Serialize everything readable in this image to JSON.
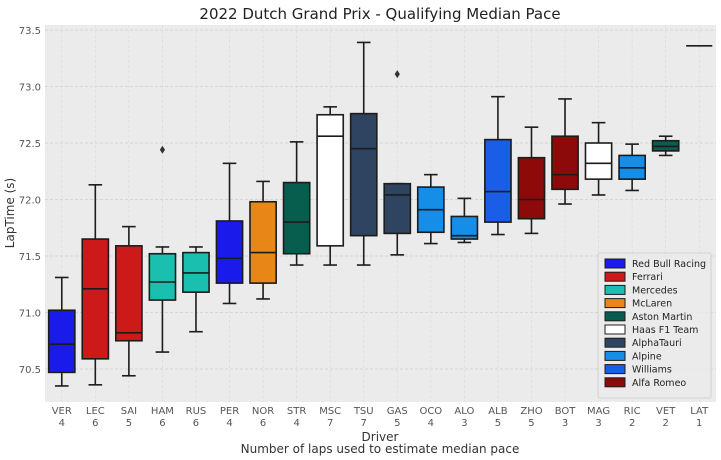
{
  "chart_data": {
    "type": "boxplot",
    "title": "2022 Dutch Grand Prix - Qualifying Median Pace",
    "xlabel": "Driver",
    "xlabel_sub": "Number of laps used to estimate median pace",
    "ylabel": "LapTime (s)",
    "ylim": [
      70.2,
      73.55
    ],
    "yticks": [
      "70.5",
      "71.0",
      "71.5",
      "72.0",
      "72.5",
      "73.0",
      "73.5"
    ],
    "grid": true,
    "legend_position": "lower-right",
    "teams": [
      {
        "name": "Red Bull Racing",
        "color": "#1a1aeb"
      },
      {
        "name": "Ferrari",
        "color": "#cc1a1a"
      },
      {
        "name": "Mercedes",
        "color": "#1abfb0"
      },
      {
        "name": "McLaren",
        "color": "#e88718"
      },
      {
        "name": "Aston Martin",
        "color": "#075e4e"
      },
      {
        "name": "Haas F1 Team",
        "color": "#ffffff"
      },
      {
        "name": "AlphaTauri",
        "color": "#2f4460"
      },
      {
        "name": "Alpine",
        "color": "#168ee8"
      },
      {
        "name": "Williams",
        "color": "#1a5ee8"
      },
      {
        "name": "Alfa Romeo",
        "color": "#8c0a0a"
      }
    ],
    "drivers": [
      {
        "driver": "VER",
        "laps": "4",
        "team": 0,
        "whisker_low": 70.35,
        "q1": 70.47,
        "median": 70.72,
        "q3": 71.02,
        "whisker_high": 71.31,
        "outliers": []
      },
      {
        "driver": "LEC",
        "laps": "6",
        "team": 1,
        "whisker_low": 70.36,
        "q1": 70.59,
        "median": 71.21,
        "q3": 71.65,
        "whisker_high": 72.13,
        "outliers": []
      },
      {
        "driver": "SAI",
        "laps": "5",
        "team": 1,
        "whisker_low": 70.44,
        "q1": 70.75,
        "median": 70.82,
        "q3": 71.59,
        "whisker_high": 71.76,
        "outliers": []
      },
      {
        "driver": "HAM",
        "laps": "6",
        "team": 2,
        "whisker_low": 70.65,
        "q1": 71.11,
        "median": 71.27,
        "q3": 71.52,
        "whisker_high": 71.58,
        "outliers": [
          72.44
        ]
      },
      {
        "driver": "RUS",
        "laps": "6",
        "team": 2,
        "whisker_low": 70.83,
        "q1": 71.18,
        "median": 71.35,
        "q3": 71.53,
        "whisker_high": 71.58,
        "outliers": []
      },
      {
        "driver": "PER",
        "laps": "4",
        "team": 0,
        "whisker_low": 71.08,
        "q1": 71.26,
        "median": 71.48,
        "q3": 71.81,
        "whisker_high": 72.32,
        "outliers": []
      },
      {
        "driver": "NOR",
        "laps": "6",
        "team": 3,
        "whisker_low": 71.12,
        "q1": 71.26,
        "median": 71.53,
        "q3": 71.98,
        "whisker_high": 72.16,
        "outliers": []
      },
      {
        "driver": "STR",
        "laps": "4",
        "team": 4,
        "whisker_low": 71.42,
        "q1": 71.52,
        "median": 71.8,
        "q3": 72.15,
        "whisker_high": 72.51,
        "outliers": []
      },
      {
        "driver": "MSC",
        "laps": "7",
        "team": 5,
        "whisker_low": 71.42,
        "q1": 71.59,
        "median": 72.56,
        "q3": 72.75,
        "whisker_high": 72.82,
        "outliers": []
      },
      {
        "driver": "TSU",
        "laps": "7",
        "team": 6,
        "whisker_low": 71.42,
        "q1": 71.68,
        "median": 72.45,
        "q3": 72.76,
        "whisker_high": 73.39,
        "outliers": []
      },
      {
        "driver": "GAS",
        "laps": "5",
        "team": 6,
        "whisker_low": 71.51,
        "q1": 71.7,
        "median": 72.04,
        "q3": 72.14,
        "whisker_high": 72.14,
        "outliers": [
          73.11
        ]
      },
      {
        "driver": "OCO",
        "laps": "4",
        "team": 7,
        "whisker_low": 71.61,
        "q1": 71.71,
        "median": 71.91,
        "q3": 72.11,
        "whisker_high": 72.22,
        "outliers": []
      },
      {
        "driver": "ALO",
        "laps": "3",
        "team": 7,
        "whisker_low": 71.62,
        "q1": 71.65,
        "median": 71.68,
        "q3": 71.85,
        "whisker_high": 72.01,
        "outliers": []
      },
      {
        "driver": "ALB",
        "laps": "5",
        "team": 8,
        "whisker_low": 71.69,
        "q1": 71.8,
        "median": 72.07,
        "q3": 72.53,
        "whisker_high": 72.91,
        "outliers": []
      },
      {
        "driver": "ZHO",
        "laps": "5",
        "team": 9,
        "whisker_low": 71.7,
        "q1": 71.83,
        "median": 72.0,
        "q3": 72.37,
        "whisker_high": 72.64,
        "outliers": []
      },
      {
        "driver": "BOT",
        "laps": "3",
        "team": 9,
        "whisker_low": 71.96,
        "q1": 72.09,
        "median": 72.22,
        "q3": 72.56,
        "whisker_high": 72.89,
        "outliers": []
      },
      {
        "driver": "MAG",
        "laps": "3",
        "team": 5,
        "whisker_low": 72.04,
        "q1": 72.18,
        "median": 72.32,
        "q3": 72.5,
        "whisker_high": 72.68,
        "outliers": []
      },
      {
        "driver": "RIC",
        "laps": "2",
        "team": 7,
        "whisker_low": 72.08,
        "q1": 72.18,
        "median": 72.28,
        "q3": 72.39,
        "whisker_high": 72.49,
        "outliers": []
      },
      {
        "driver": "VET",
        "laps": "2",
        "team": 4,
        "whisker_low": 72.39,
        "q1": 72.43,
        "median": 72.47,
        "q3": 72.52,
        "whisker_high": 72.56,
        "outliers": []
      },
      {
        "driver": "LAT",
        "laps": "1",
        "team": 8,
        "whisker_low": 73.36,
        "q1": 73.36,
        "median": 73.36,
        "q3": 73.36,
        "whisker_high": 73.36,
        "outliers": []
      }
    ]
  }
}
